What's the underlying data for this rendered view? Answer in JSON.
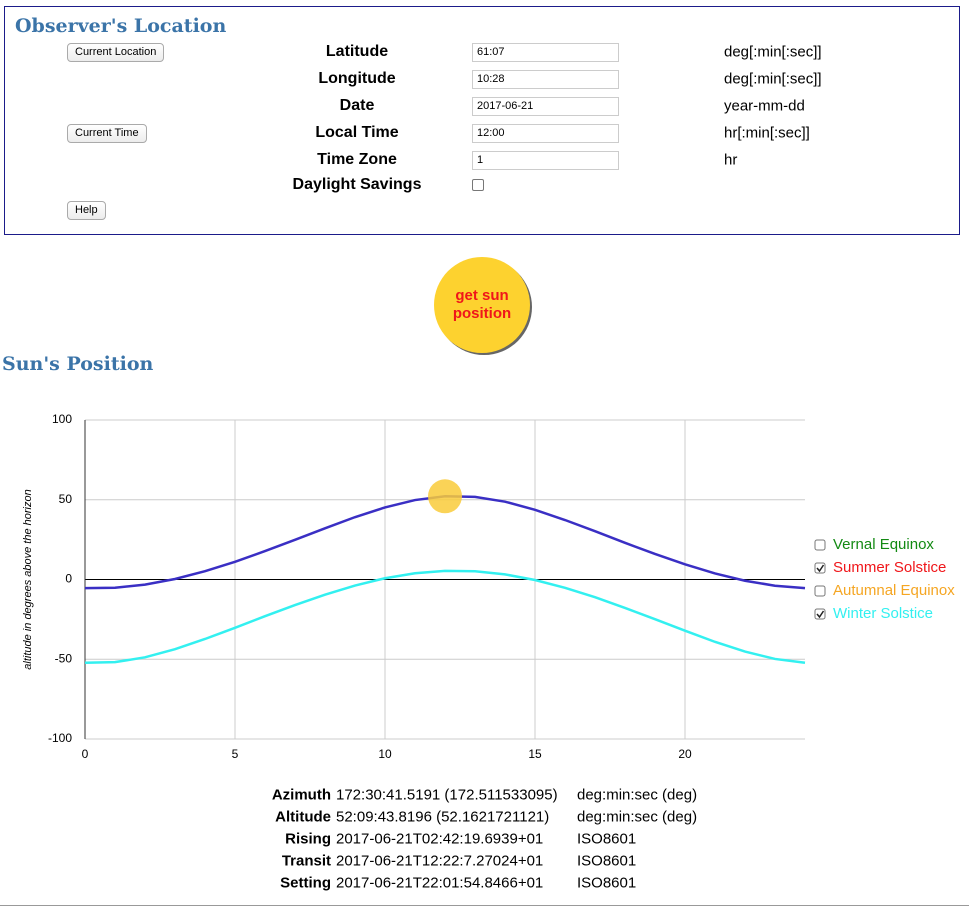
{
  "observer": {
    "title": "Observer's Location",
    "buttons": {
      "current_location": "Current Location",
      "current_time": "Current Time",
      "help": "Help"
    },
    "fields": [
      {
        "label": "Latitude",
        "value": "61:07",
        "unit": "deg[:min[:sec]]"
      },
      {
        "label": "Longitude",
        "value": "10:28",
        "unit": "deg[:min[:sec]]"
      },
      {
        "label": "Date",
        "value": "2017-06-21",
        "unit": "year-mm-dd"
      },
      {
        "label": "Local Time",
        "value": "12:00",
        "unit": "hr[:min[:sec]]"
      },
      {
        "label": "Time Zone",
        "value": "1",
        "unit": "hr"
      }
    ],
    "daylight": {
      "label": "Daylight Savings",
      "checked": false
    }
  },
  "action": {
    "button": "get sun position"
  },
  "sun": {
    "title": "Sun's Position"
  },
  "chart_data": {
    "type": "line",
    "y_label": "altitude in degrees above the horizon",
    "xlim": [
      0,
      24
    ],
    "ylim": [
      -100,
      100
    ],
    "xticks": [
      0,
      5,
      10,
      15,
      20
    ],
    "yticks": [
      -100,
      -50,
      0,
      50,
      100
    ],
    "grid": true,
    "x": [
      0,
      1,
      2,
      3,
      4,
      5,
      6,
      7,
      8,
      9,
      10,
      11,
      12,
      13,
      14,
      15,
      16,
      17,
      18,
      19,
      20,
      21,
      22,
      23,
      24
    ],
    "series": [
      {
        "name": "Vernal Equinox",
        "label_color": "#138a13",
        "checked": false
      },
      {
        "name": "Summer Solstice",
        "label_color": "#f0161a",
        "color": "#3a2fc4",
        "checked": true,
        "values": [
          -5.4,
          -5.2,
          -3.2,
          0.3,
          5.2,
          11.1,
          17.8,
          24.9,
          32.1,
          39.1,
          45.2,
          49.8,
          52.2,
          51.8,
          48.8,
          43.7,
          37.3,
          30.3,
          23.0,
          16.0,
          9.5,
          3.8,
          -0.8,
          -3.9,
          -5.4
        ]
      },
      {
        "name": "Autumnal Equinox",
        "label_color": "#f5a623",
        "checked": false
      },
      {
        "name": "Winter Solstice",
        "label_color": "#33f0f0",
        "color": "#33f0f0",
        "checked": true,
        "values": [
          -52.2,
          -51.8,
          -48.8,
          -43.7,
          -37.3,
          -30.3,
          -23.0,
          -16.0,
          -9.5,
          -3.8,
          0.8,
          3.9,
          5.4,
          5.2,
          3.2,
          -0.3,
          -5.2,
          -11.1,
          -17.8,
          -24.9,
          -32.1,
          -39.1,
          -45.2,
          -49.8,
          -52.2
        ]
      }
    ],
    "marker": {
      "x": 12,
      "y": 52.1621721121,
      "color": "#f9cb3a"
    }
  },
  "results": [
    {
      "label": "Azimuth",
      "value": "172:30:41.5191 (172.511533095)",
      "unit": "deg:min:sec (deg)"
    },
    {
      "label": "Altitude",
      "value": "52:09:43.8196 (52.1621721121)",
      "unit": "deg:min:sec (deg)"
    },
    {
      "label": "Rising",
      "value": "2017-06-21T02:42:19.6939+01",
      "unit": "ISO8601"
    },
    {
      "label": "Transit",
      "value": "2017-06-21T12:22:7.27024+01",
      "unit": "ISO8601"
    },
    {
      "label": "Setting",
      "value": "2017-06-21T22:01:54.8466+01",
      "unit": "ISO8601"
    }
  ]
}
